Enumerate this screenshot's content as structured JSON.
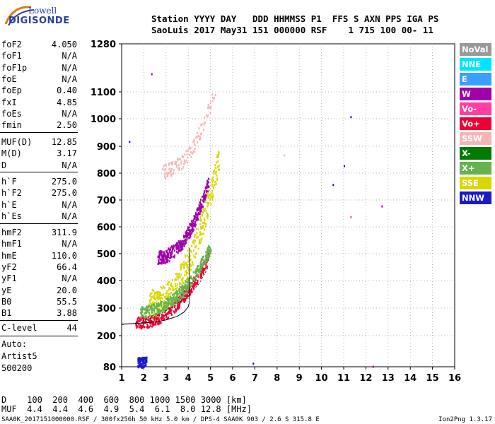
{
  "logo": {
    "line1": "Lowell",
    "line2": "DIGISONDE"
  },
  "header": {
    "line1": "Station YYYY DAY   DDD HHMMSS P1  FFS S AXN PPS IGA PS",
    "line2": "SaoLuis 2017 May31 151 000000 RSF    1 715 100 00- 11"
  },
  "params": [
    {
      "name": "foF2",
      "value": "4.050"
    },
    {
      "name": "foF1",
      "value": "N/A"
    },
    {
      "name": "foF1p",
      "value": "N/A"
    },
    {
      "name": "foE",
      "value": "N/A"
    },
    {
      "name": "foEp",
      "value": "0.40"
    },
    {
      "name": "fxI",
      "value": "4.85"
    },
    {
      "name": "foEs",
      "value": "N/A"
    },
    {
      "name": "fmin",
      "value": "2.50"
    },
    {
      "name": "MUF(D)",
      "value": "12.85"
    },
    {
      "name": "M(D)",
      "value": "3.17"
    },
    {
      "name": "D",
      "value": "N/A"
    },
    {
      "name": "h`F",
      "value": "275.0"
    },
    {
      "name": "h`F2",
      "value": "275.0"
    },
    {
      "name": "h`E",
      "value": "N/A"
    },
    {
      "name": "h`Es",
      "value": "N/A"
    },
    {
      "name": "hmF2",
      "value": "311.9"
    },
    {
      "name": "hmF1",
      "value": "N/A"
    },
    {
      "name": "hmE",
      "value": "110.0"
    },
    {
      "name": "yF2",
      "value": "66.4"
    },
    {
      "name": "yF1",
      "value": "N/A"
    },
    {
      "name": "yE",
      "value": "20.0"
    },
    {
      "name": "B0",
      "value": "55.5"
    },
    {
      "name": "B1",
      "value": "3.88"
    },
    {
      "name": "C-level",
      "value": "44"
    }
  ],
  "autoscaling": {
    "line1": "Auto:",
    "line2": "Artist5",
    "line3": "500200"
  },
  "legend": [
    {
      "label": "NoVal",
      "color": "#999999",
      "text": "#ffffff"
    },
    {
      "label": "NNE",
      "color": "#00e5ff",
      "text": "#ffffff"
    },
    {
      "label": "E",
      "color": "#39a0ff",
      "text": "#ffffff"
    },
    {
      "label": "W",
      "color": "#a000a8",
      "text": "#ffffff"
    },
    {
      "label": "Vo-",
      "color": "#ff3fa0",
      "text": "#ffffff"
    },
    {
      "label": "Vo+",
      "color": "#ee0033",
      "text": "#ffffff"
    },
    {
      "label": "SSW",
      "color": "#f5b5b5",
      "text": "#ffffff"
    },
    {
      "label": "X-",
      "color": "#007a00",
      "text": "#ffffff"
    },
    {
      "label": "X+",
      "color": "#66b34d",
      "text": "#ffffff"
    },
    {
      "label": "SSE",
      "color": "#d8d800",
      "text": "#ffffff"
    },
    {
      "label": "NNW",
      "color": "#1a1ac8",
      "text": "#ffffff"
    }
  ],
  "muf_table": {
    "row1": "D    100  200  400  600  800 1000 1500 3000 [km]",
    "row2": "MUF  4.4  4.4  4.6  4.9  5.4  6.1  8.0 12.8 [MHz]"
  },
  "footer": {
    "left": "SAA0K_2017151000000.RSF / 300fx256h 50 kHz 5.0 km / DPS-4 SAA0K 903 / 2.6 S 315.8 E",
    "right": "Ion2Png 1.3.17"
  },
  "chart_data": {
    "type": "scatter",
    "title": "",
    "xlabel": "",
    "ylabel": "",
    "xlim": [
      1,
      16
    ],
    "ylim": [
      80,
      1280
    ],
    "x_ticks": [
      1,
      2,
      3,
      4,
      5,
      6,
      7,
      8,
      9,
      10,
      11,
      12,
      13,
      14,
      15,
      16
    ],
    "y_ticks": [
      80,
      200,
      300,
      400,
      500,
      600,
      700,
      800,
      900,
      1000,
      1100,
      1280
    ],
    "grid": "dotted",
    "scale": "log-like",
    "profile_curve": {
      "x": [
        1.0,
        1.5,
        2.0,
        2.5,
        3.0,
        3.5,
        3.8,
        4.0,
        4.05
      ],
      "y": [
        242,
        244,
        246,
        250,
        257,
        270,
        285,
        305,
        320
      ]
    },
    "virtual_height_trace": {
      "x": [
        1.0,
        1.6,
        2.0,
        2.5,
        3.0,
        3.5,
        4.0,
        4.5,
        4.9
      ],
      "y": [
        240,
        245,
        255,
        268,
        290,
        315,
        345,
        390,
        450
      ]
    },
    "traces": [
      {
        "series": "Vo+",
        "band": "F2-o",
        "x_from": 1.6,
        "x_to": 4.9,
        "y_from": 240,
        "y_to": 480
      },
      {
        "series": "W",
        "band": "F2-2hop",
        "x_from": 2.6,
        "x_to": 4.9,
        "y_from": 480,
        "y_to": 760
      },
      {
        "series": "SSE",
        "band": "F2-x",
        "x_from": 2.2,
        "x_to": 5.4,
        "y_from": 300,
        "y_to": 850
      },
      {
        "series": "X+",
        "band": "F2-x",
        "x_from": 1.8,
        "x_to": 5.0,
        "y_from": 280,
        "y_to": 520
      },
      {
        "series": "SSW",
        "band": "multihop",
        "x_from": 2.8,
        "x_to": 5.2,
        "y_from": 800,
        "y_to": 1100
      },
      {
        "series": "NNW",
        "band": "E",
        "x_from": 1.7,
        "x_to": 2.1,
        "y_from": 80,
        "y_to": 120
      }
    ],
    "isolated_points": [
      {
        "x": 1.33,
        "y": 920,
        "series": "NNW"
      },
      {
        "x": 2.33,
        "y": 1170,
        "series": "W"
      },
      {
        "x": 11.3,
        "y": 1010,
        "series": "NNW"
      },
      {
        "x": 11.0,
        "y": 830,
        "series": "NNW"
      },
      {
        "x": 10.5,
        "y": 760,
        "series": "NNW"
      },
      {
        "x": 12.7,
        "y": 680,
        "series": "W"
      },
      {
        "x": 11.3,
        "y": 640,
        "series": "Vo-"
      },
      {
        "x": 6.9,
        "y": 96,
        "series": "NNW"
      },
      {
        "x": 12.3,
        "y": 84,
        "series": "W"
      },
      {
        "x": 8.3,
        "y": 870,
        "series": "SSW"
      }
    ]
  }
}
